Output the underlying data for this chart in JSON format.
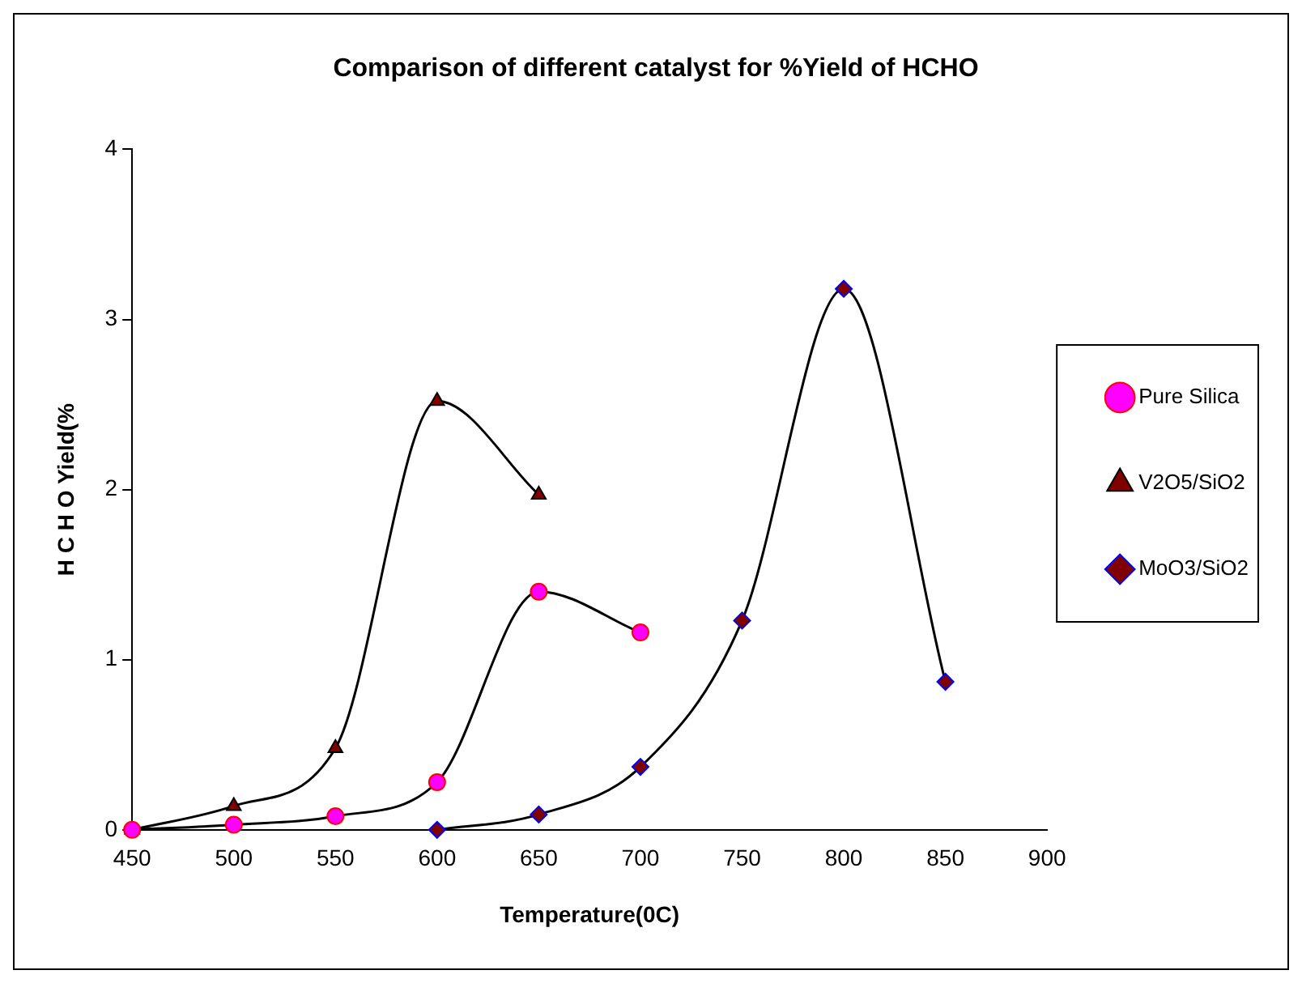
{
  "chart_data": {
    "type": "line",
    "title": "Comparison of different catalyst for %Yield of HCHO",
    "xlabel": "Temperature(0C)",
    "ylabel": "H C H O Yield(%",
    "xlim": [
      450,
      900
    ],
    "xticks": [
      450,
      500,
      550,
      600,
      650,
      700,
      750,
      800,
      850,
      900
    ],
    "ylim": [
      0,
      4
    ],
    "yticks": [
      0,
      1,
      2,
      3,
      4
    ],
    "grid": false,
    "legend": "right",
    "series": [
      {
        "name": "Pure Silica",
        "color": "#ff00ff",
        "marker": "circle",
        "x": [
          450,
          500,
          550,
          600,
          650,
          700
        ],
        "values": [
          0,
          0.03,
          0.08,
          0.28,
          1.4,
          1.16
        ]
      },
      {
        "name": "V2O5/SiO2",
        "color": "#800000",
        "marker": "triangle",
        "x": [
          450,
          500,
          550,
          600,
          650
        ],
        "values": [
          0,
          0.14,
          0.48,
          2.52,
          1.97
        ]
      },
      {
        "name": "MoO3/SiO2",
        "color": "#800000",
        "marker": "diamond",
        "x": [
          600,
          650,
          700,
          750,
          800,
          850
        ],
        "values": [
          0,
          0.09,
          0.37,
          1.23,
          3.18,
          0.87
        ]
      }
    ]
  }
}
